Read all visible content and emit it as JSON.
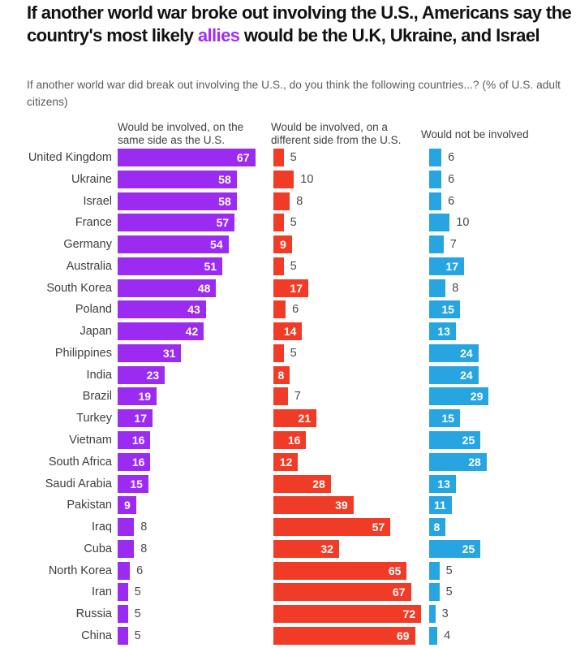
{
  "title": {
    "prefix": "If another world war broke out involving the U.S., Americans say the country's most likely ",
    "highlight": "allies",
    "suffix": " would be the U.K, Ukraine, and Israel"
  },
  "subtitle": "If another world war did break out involving the U.S., do you think the following countries...? (% of U.S. adult citizens)",
  "colors": {
    "purple": "#9C2BF2",
    "red": "#F03C27",
    "blue": "#27A5E1",
    "highlight": "#A32BF7"
  },
  "chart_data": {
    "type": "bar",
    "orientation": "horizontal",
    "unit": "% of U.S. adult citizens",
    "value_range": [
      0,
      72
    ],
    "categories": [
      "United Kingdom",
      "Ukraine",
      "Israel",
      "France",
      "Germany",
      "Australia",
      "South Korea",
      "Poland",
      "Japan",
      "Philippines",
      "India",
      "Brazil",
      "Turkey",
      "Vietnam",
      "South Africa",
      "Saudi Arabia",
      "Pakistan",
      "Iraq",
      "Cuba",
      "North Korea",
      "Iran",
      "Russia",
      "China"
    ],
    "series": [
      {
        "key": "same-side",
        "name": "Would be involved, on the same side as the U.S.",
        "color_key": "purple",
        "values": [
          67,
          58,
          58,
          57,
          54,
          51,
          48,
          43,
          42,
          31,
          23,
          19,
          17,
          16,
          16,
          15,
          9,
          8,
          8,
          6,
          5,
          5,
          5
        ],
        "label_inside": [
          true,
          true,
          true,
          true,
          true,
          true,
          true,
          true,
          true,
          true,
          true,
          true,
          true,
          true,
          true,
          true,
          true,
          false,
          false,
          false,
          false,
          false,
          false
        ]
      },
      {
        "key": "different-side",
        "name": "Would be involved, on a different side from the U.S.",
        "color_key": "red",
        "values": [
          5,
          10,
          8,
          5,
          9,
          5,
          17,
          6,
          14,
          5,
          8,
          7,
          21,
          16,
          12,
          28,
          39,
          57,
          32,
          65,
          67,
          72,
          69
        ],
        "label_inside": [
          false,
          false,
          false,
          false,
          true,
          false,
          true,
          false,
          true,
          false,
          true,
          false,
          true,
          true,
          true,
          true,
          true,
          true,
          true,
          true,
          true,
          true,
          true
        ]
      },
      {
        "key": "not-involved",
        "name": "Would not be involved",
        "color_key": "blue",
        "values": [
          6,
          6,
          6,
          10,
          7,
          17,
          8,
          15,
          13,
          24,
          24,
          29,
          15,
          25,
          28,
          13,
          11,
          8,
          25,
          5,
          5,
          3,
          4
        ],
        "label_inside": [
          false,
          false,
          false,
          false,
          false,
          true,
          false,
          true,
          true,
          true,
          true,
          true,
          true,
          true,
          true,
          true,
          true,
          true,
          true,
          false,
          false,
          false,
          false
        ]
      }
    ],
    "legend_position": "column-headers",
    "grid": false
  }
}
